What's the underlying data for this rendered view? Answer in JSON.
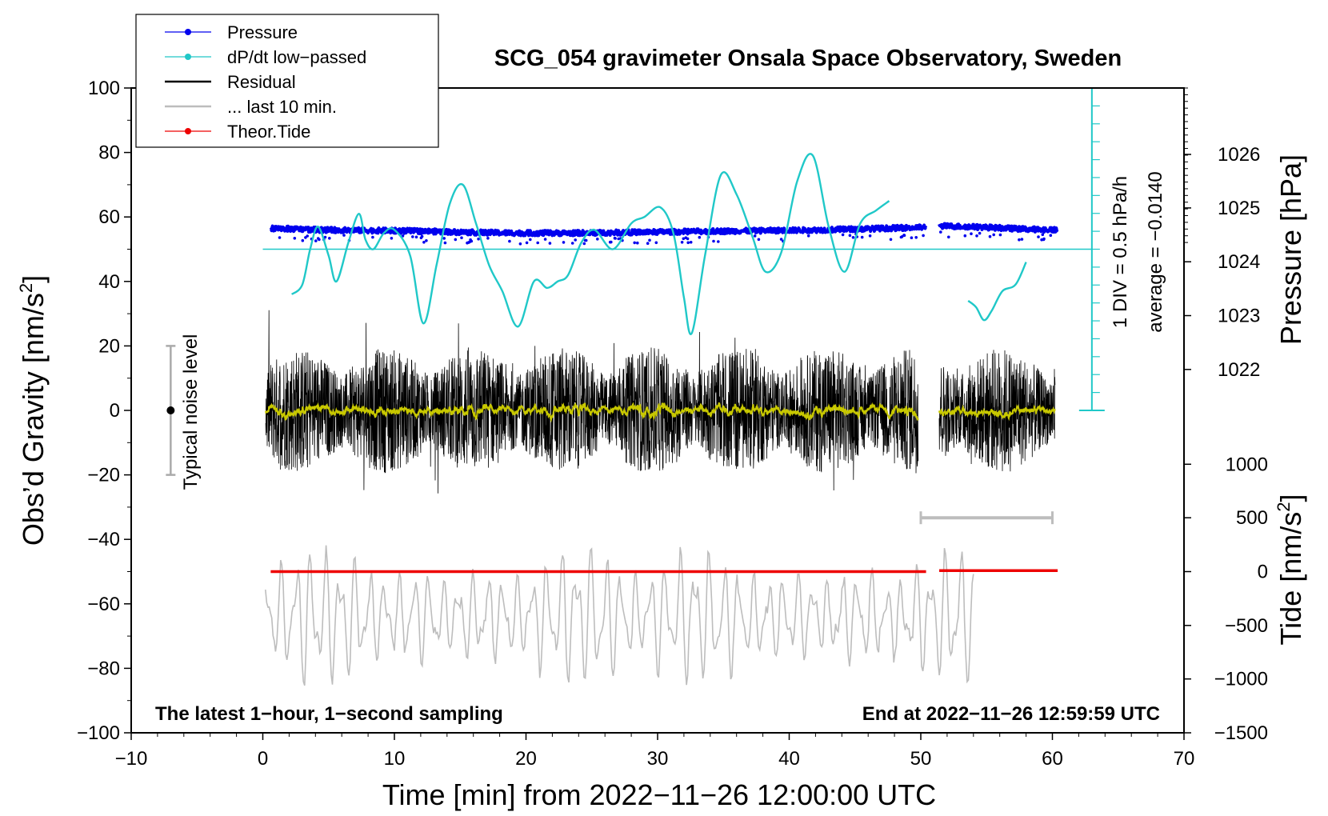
{
  "chart_data": {
    "type": "line",
    "title": "SCG_054 gravimeter Onsala Space Observatory, Sweden",
    "xlabel": "Time [min] from 2022−11−26 12:00:00 UTC",
    "ylabel": "Obs’d Gravity [nm/s",
    "ylabel_sup": "2",
    "ylabel_end": "]",
    "xlim": [
      -10,
      70
    ],
    "ylim": [
      -100,
      100
    ],
    "x_ticks": [
      {
        "v": -10,
        "label": "−10"
      },
      {
        "v": 0,
        "label": "0"
      },
      {
        "v": 10,
        "label": "10"
      },
      {
        "v": 20,
        "label": "20"
      },
      {
        "v": 30,
        "label": "30"
      },
      {
        "v": 40,
        "label": "40"
      },
      {
        "v": 50,
        "label": "50"
      },
      {
        "v": 60,
        "label": "60"
      },
      {
        "v": 70,
        "label": "70"
      }
    ],
    "y_ticks": [
      {
        "v": 100,
        "label": "100"
      },
      {
        "v": 80,
        "label": "80"
      },
      {
        "v": 60,
        "label": "60"
      },
      {
        "v": 40,
        "label": "40"
      },
      {
        "v": 20,
        "label": "20"
      },
      {
        "v": 0,
        "label": "0"
      },
      {
        "v": -20,
        "label": "−20"
      },
      {
        "v": -40,
        "label": "−40"
      },
      {
        "v": -60,
        "label": "−60"
      },
      {
        "v": -80,
        "label": "−80"
      },
      {
        "v": -100,
        "label": "−100"
      }
    ],
    "pressure_axis": {
      "label": "Pressure [hPa]",
      "ticks": [
        {
          "v": 1026,
          "label": "1026",
          "y": 79.4
        },
        {
          "v": 1025,
          "label": "1025",
          "y": 62.8
        },
        {
          "v": 1024,
          "label": "1024",
          "y": 46.1
        },
        {
          "v": 1023,
          "label": "1023",
          "y": 29.4
        },
        {
          "v": 1022,
          "label": "1022",
          "y": 12.7
        }
      ]
    },
    "tide_axis": {
      "label_base": "Tide [nm/s",
      "label_sup": "2",
      "label_end": "]",
      "ticks": [
        {
          "v": 1000,
          "label": "1000",
          "y": -16.7
        },
        {
          "v": 500,
          "label": "500",
          "y": -33.3
        },
        {
          "v": 0,
          "label": "0",
          "y": -50
        },
        {
          "v": -500,
          "label": "−500",
          "y": -66.7
        },
        {
          "v": -1000,
          "label": "−1000",
          "y": -83.3
        },
        {
          "v": -1500,
          "label": "−1500",
          "y": -100
        }
      ]
    },
    "legend": [
      {
        "name": "Pressure",
        "color": "#0000ee",
        "style": "line-dot"
      },
      {
        "name": "dP/dt low−passed",
        "color": "#20c8c8",
        "style": "line-dot"
      },
      {
        "name": "Residual",
        "color": "#000000",
        "style": "line"
      },
      {
        "name": "... last 10 min.",
        "color": "#bdbdbd",
        "style": "line"
      },
      {
        "name": "Theor.Tide",
        "color": "#ee0000",
        "style": "line-dot"
      }
    ],
    "colors": {
      "pressure": "#0000ee",
      "dpdt": "#20c8c8",
      "residual": "#000000",
      "residual_smooth": "#c8c800",
      "last10": "#bdbdbd",
      "tide": "#ee0000",
      "noise_bar": "#aaaaaa"
    },
    "series": [
      {
        "name": "dP/dt low−passed",
        "segments": [
          {
            "x": [
              2.2,
              3.0,
              3.6,
              4.2,
              5.0,
              5.6,
              6.5,
              7.3,
              7.8,
              8.4,
              9.2,
              10.0,
              11.2,
              12.2,
              13.2,
              14.2,
              15.2,
              16.2,
              17.2,
              18.2,
              19.4,
              20.6,
              21.6,
              22.4,
              23.2,
              24.2,
              25.2,
              26.6,
              28.0,
              29.0,
              30.2,
              31.2,
              32.0,
              32.6,
              33.6,
              34.8,
              36.0,
              37.2,
              38.2,
              39.4,
              40.6,
              41.8,
              43.0,
              44.2,
              45.4,
              46.6,
              47.6
            ],
            "y": [
              36,
              39,
              50,
              57,
              48,
              40,
              52,
              61,
              53,
              50,
              55,
              56,
              48,
              27,
              45,
              64,
              70,
              58,
              45,
              37,
              26,
              40,
              38,
              40,
              42,
              52,
              56,
              50,
              58,
              60,
              63,
              55,
              35,
              24,
              48,
              73,
              67,
              54,
              43,
              49,
              71,
              79,
              57,
              43,
              58,
              62,
              65
            ]
          },
          {
            "x": [
              53.6,
              54.2,
              54.8,
              55.4,
              56.2,
              57.2,
              58.0
            ],
            "y": [
              34,
              32,
              28,
              31,
              37,
              39,
              46
            ]
          }
        ]
      },
      {
        "name": "Pressure",
        "segments": [
          {
            "start": 0.6,
            "end": 50.4,
            "levels": [
              56.5,
              56.0,
              55.8,
              55.6,
              55.2,
              55.0,
              55.0,
              55.2,
              55.4,
              55.6,
              55.8,
              56.0,
              56.4,
              56.8
            ]
          },
          {
            "start": 51.4,
            "end": 60.4,
            "levels": [
              57.2,
              57.0,
              56.6,
              56.2,
              56.0
            ]
          }
        ]
      },
      {
        "name": "Residual",
        "segments": [
          {
            "start": 0.2,
            "end": 49.8
          },
          {
            "start": 51.4,
            "end": 60.2
          }
        ],
        "amplitude": 15
      },
      {
        "name": "... last 10 min.",
        "start": 0.2,
        "end": 54.0,
        "center": -64,
        "amplitude": 16
      },
      {
        "name": "Theor.Tide",
        "segments": [
          {
            "start": 0.6,
            "end": 50.4,
            "y": -50.0
          },
          {
            "start": 51.4,
            "end": 60.4,
            "y": -49.7
          }
        ]
      }
    ],
    "dpdt_zero_line": {
      "y": 50.0,
      "x_from": 0,
      "x_to": 63
    },
    "scale_bar": {
      "x": 63,
      "y_top": 100,
      "y_bottom": 0,
      "div_count": 18
    },
    "scale_label_1": "1 DIV = 0.5 hPa/h",
    "scale_label_2": "average = −0.0140",
    "noise_level": {
      "label": "Typical noise level",
      "x": -7,
      "y_center": 0,
      "y_top": 20,
      "y_bottom": -20
    },
    "window_bar": {
      "x_from": 50,
      "x_to": 60,
      "y": -33.3
    },
    "annotation_left": "The latest 1−hour, 1−second sampling",
    "annotation_right": "End at 2022−11−26 12:59:59 UTC"
  }
}
